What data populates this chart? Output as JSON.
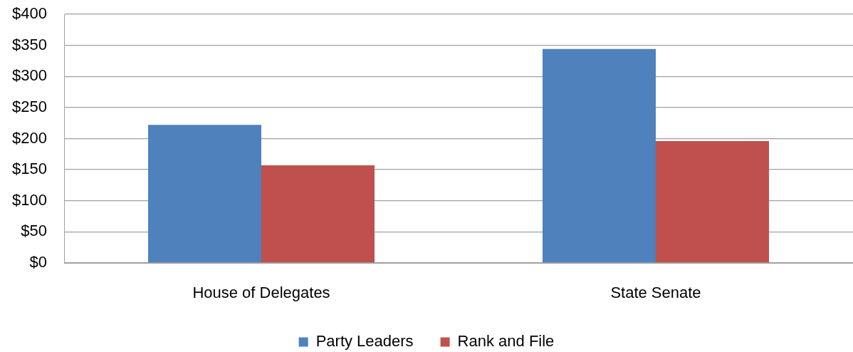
{
  "chart_data": {
    "type": "bar",
    "categories": [
      "House of Delegates",
      "State Senate"
    ],
    "series": [
      {
        "name": "Party Leaders",
        "color": "#4f81bd",
        "values": [
          222,
          344
        ]
      },
      {
        "name": "Rank and File",
        "color": "#c0504d",
        "values": [
          157,
          196
        ]
      }
    ],
    "ylim": [
      0,
      400
    ],
    "yticks": [
      {
        "value": 0,
        "label": "$0"
      },
      {
        "value": 50,
        "label": "$50"
      },
      {
        "value": 100,
        "label": "$100"
      },
      {
        "value": 150,
        "label": "$150"
      },
      {
        "value": 200,
        "label": "$200"
      },
      {
        "value": 250,
        "label": "$250"
      },
      {
        "value": 300,
        "label": "$300"
      },
      {
        "value": 350,
        "label": "$350"
      },
      {
        "value": 400,
        "label": "$400"
      }
    ],
    "grid": "y",
    "legend": "bottom"
  }
}
